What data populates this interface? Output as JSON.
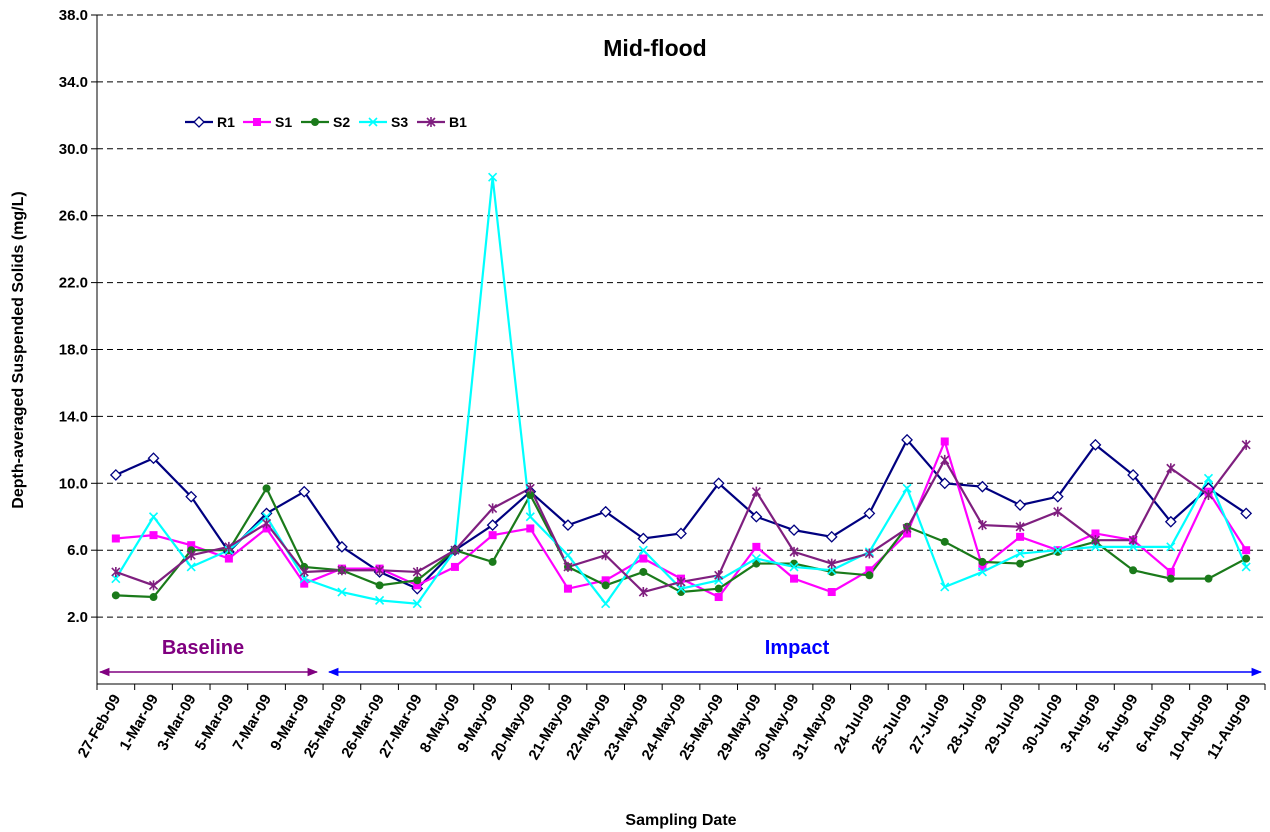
{
  "chart_data": {
    "type": "line",
    "title": "Mid-flood",
    "x_label": "Sampling Date",
    "y_label": "Depth-averaged Suspended Solids (mg/L)",
    "categories": [
      "27-Feb-09",
      "1-Mar-09",
      "3-Mar-09",
      "5-Mar-09",
      "7-Mar-09",
      "9-Mar-09",
      "25-Mar-09",
      "26-Mar-09",
      "27-Mar-09",
      "8-May-09",
      "9-May-09",
      "20-May-09",
      "21-May-09",
      "22-May-09",
      "23-May-09",
      "24-May-09",
      "25-May-09",
      "29-May-09",
      "30-May-09",
      "31-May-09",
      "24-Jul-09",
      "25-Jul-09",
      "27-Jul-09",
      "28-Jul-09",
      "29-Jul-09",
      "30-Jul-09",
      "3-Aug-09",
      "5-Aug-09",
      "6-Aug-09",
      "10-Aug-09",
      "11-Aug-09"
    ],
    "series": [
      {
        "name": "R1",
        "color": "#000080",
        "marker": "diamond",
        "values": [
          10.5,
          11.5,
          9.2,
          5.9,
          8.2,
          9.5,
          6.2,
          4.7,
          3.7,
          6.0,
          7.5,
          9.5,
          7.5,
          8.3,
          6.7,
          7.0,
          10.0,
          8.0,
          7.2,
          6.8,
          8.2,
          12.6,
          10.0,
          9.8,
          8.7,
          9.2,
          12.3,
          10.5,
          7.7,
          9.7,
          8.2
        ]
      },
      {
        "name": "S1",
        "color": "#ff00ff",
        "marker": "square",
        "values": [
          6.7,
          6.9,
          6.3,
          5.5,
          7.3,
          4.0,
          4.9,
          4.9,
          3.9,
          5.0,
          6.9,
          7.3,
          3.7,
          4.2,
          5.5,
          4.3,
          3.2,
          6.2,
          4.3,
          3.5,
          4.8,
          7.0,
          12.5,
          5.0,
          6.8,
          6.0,
          7.0,
          6.6,
          4.7,
          9.5,
          6.0
        ]
      },
      {
        "name": "S2",
        "color": "#1a7a1a",
        "marker": "circle",
        "values": [
          3.3,
          3.2,
          6.0,
          6.0,
          9.7,
          5.0,
          4.8,
          3.9,
          4.2,
          6.0,
          5.3,
          9.3,
          5.0,
          3.9,
          4.7,
          3.5,
          3.7,
          5.2,
          5.2,
          4.7,
          4.5,
          7.4,
          6.5,
          5.3,
          5.2,
          5.9,
          6.5,
          4.8,
          4.3,
          4.3,
          5.5
        ]
      },
      {
        "name": "S3",
        "color": "#00ffff",
        "marker": "x",
        "values": [
          4.3,
          8.0,
          5.0,
          6.0,
          8.0,
          4.3,
          3.5,
          3.0,
          2.8,
          6.0,
          28.3,
          8.0,
          5.7,
          2.8,
          6.0,
          3.7,
          4.2,
          5.5,
          5.0,
          4.8,
          5.9,
          9.7,
          3.8,
          4.7,
          5.8,
          6.0,
          6.2,
          6.2,
          6.2,
          10.3,
          5.0
        ]
      },
      {
        "name": "B1",
        "color": "#7f1f7f",
        "marker": "star",
        "values": [
          4.7,
          3.9,
          5.7,
          6.2,
          7.6,
          4.7,
          4.8,
          4.8,
          4.7,
          6.0,
          8.5,
          9.7,
          5.0,
          5.7,
          3.5,
          4.1,
          4.5,
          9.5,
          5.9,
          5.2,
          5.8,
          7.3,
          11.4,
          7.5,
          7.4,
          8.3,
          6.6,
          6.6,
          10.9,
          9.3,
          12.3
        ]
      }
    ],
    "ylim": [
      -2,
      38
    ],
    "yticks": [
      {
        "value": 2,
        "label": "2.0"
      },
      {
        "value": 6,
        "label": "6.0"
      },
      {
        "value": 10,
        "label": "10.0"
      },
      {
        "value": 14,
        "label": "14.0"
      },
      {
        "value": 18,
        "label": "18.0"
      },
      {
        "value": 22,
        "label": "22.0"
      },
      {
        "value": 26,
        "label": "26.0"
      },
      {
        "value": 30,
        "label": "30.0"
      },
      {
        "value": 34,
        "label": "34.0"
      },
      {
        "value": 38,
        "label": "38.0"
      }
    ],
    "grid": true,
    "legend_position": "upper left",
    "annotations": [
      "Baseline",
      "Impact"
    ]
  }
}
